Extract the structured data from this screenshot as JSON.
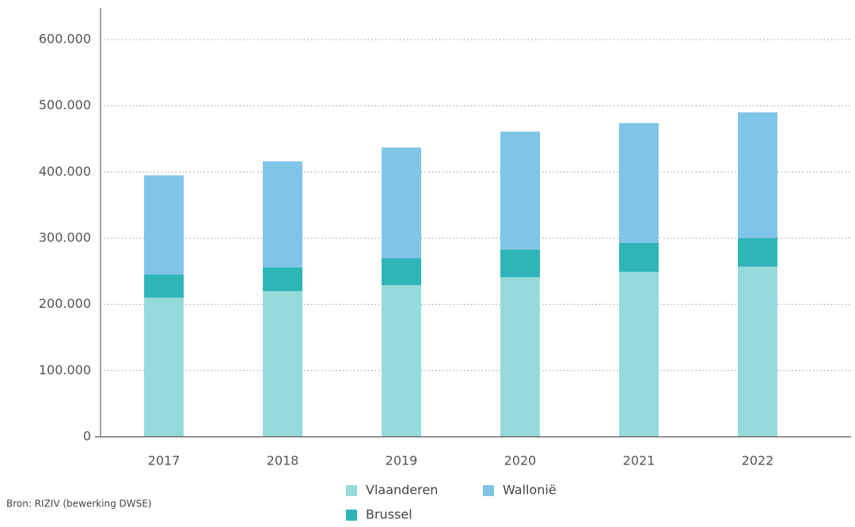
{
  "chart_data": {
    "type": "stacked_bar",
    "categories": [
      "2017",
      "2018",
      "2019",
      "2020",
      "2021",
      "2022"
    ],
    "series": [
      {
        "name": "Vlaanderen",
        "color": "#96dbdc",
        "values": [
          210000,
          220000,
          229000,
          241000,
          249000,
          257000
        ]
      },
      {
        "name": "Brussel",
        "color": "#2fb5b7",
        "values": [
          35000,
          36000,
          41000,
          42000,
          44000,
          43000
        ]
      },
      {
        "name": "Wallonië",
        "color": "#80c4e8",
        "values": [
          150000,
          160000,
          167000,
          178000,
          181000,
          190000
        ]
      }
    ],
    "ylim": [
      0,
      600000
    ],
    "yticks": [
      0,
      {
        "value": 100000,
        "label": "100.000"
      },
      {
        "value": 200000,
        "label": "200.000"
      },
      {
        "value": 300000,
        "label": "300.000"
      },
      {
        "value": 400000,
        "label": "400.000"
      },
      {
        "value": 500000,
        "label": "500.000"
      },
      {
        "value": 600000,
        "label": "600.000"
      }
    ],
    "grid": true,
    "legend": "bottom",
    "source": "Bron: RIZIV (bewerking DWSE)"
  }
}
